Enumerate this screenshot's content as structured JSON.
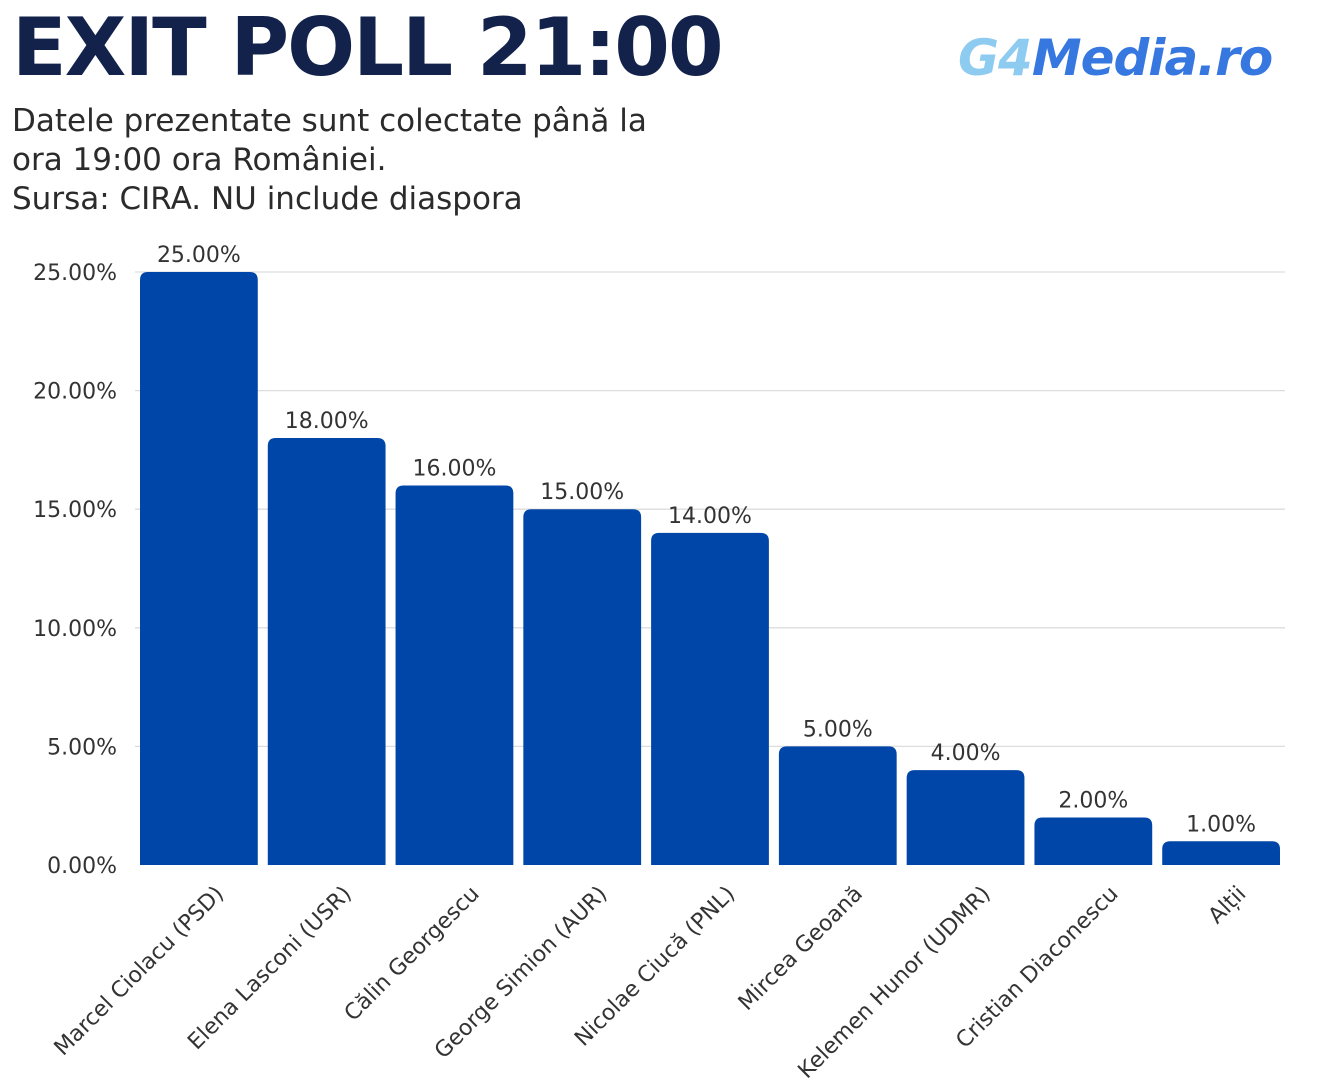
{
  "header": {
    "title": "EXIT POLL 21:00",
    "brand_part1": "G4",
    "brand_part2": "Media.ro",
    "subtitle_lines": [
      "Datele prezentate sunt colectate până la",
      "ora 19:00 ora României.",
      "Sursa: CIRA. NU include diaspora"
    ]
  },
  "colors": {
    "bar": "#0046a8",
    "title": "#12224a",
    "grid": "#dddddd",
    "brand_light": "#8ecbf0",
    "brand_dark": "#3677e0"
  },
  "chart_data": {
    "type": "bar",
    "title": "",
    "xlabel": "",
    "ylabel": "",
    "ylim": [
      0,
      25
    ],
    "y_ticks": [
      "0.00%",
      "5.00%",
      "10.00%",
      "15.00%",
      "20.00%",
      "25.00%"
    ],
    "grid": true,
    "categories": [
      "Marcel Ciolacu (PSD)",
      "Elena Lasconi (USR)",
      "Călin Georgescu",
      "George Simion (AUR)",
      "Nicolae Ciucă (PNL)",
      "Mircea Geoană",
      "Kelemen Hunor (UDMR)",
      "Cristian Diaconescu",
      "Alții"
    ],
    "values": [
      25,
      18,
      16,
      15,
      14,
      5,
      4,
      2,
      1
    ],
    "value_labels": [
      "25.00%",
      "18.00%",
      "16.00%",
      "15.00%",
      "14.00%",
      "5.00%",
      "4.00%",
      "2.00%",
      "1.00%"
    ]
  }
}
